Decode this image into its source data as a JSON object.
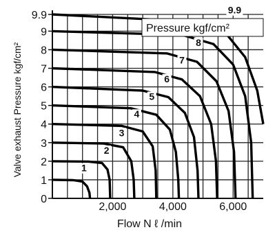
{
  "chart_data": {
    "type": "line",
    "title": "",
    "xlabel": "Flow N ℓ /min",
    "ylabel": "Valve exhaust Pressure kgf/cm²",
    "legend_title": "Pressure kgf/cm²",
    "xlim": [
      0,
      7000
    ],
    "ylim": [
      0,
      9.9
    ],
    "x_ticks": [
      2000,
      4000,
      6000
    ],
    "x_tick_labels": [
      "2,000",
      "4,000",
      "6,000"
    ],
    "y_ticks": [
      0,
      1,
      2,
      3,
      4,
      5,
      6,
      7,
      8,
      9,
      9.9
    ],
    "y_tick_labels": [
      "0",
      "1",
      "2",
      "3",
      "4",
      "5",
      "6",
      "7",
      "8",
      "9",
      "9.9"
    ],
    "grid": true,
    "series": [
      {
        "name": "1",
        "label_at": [
          1050,
          1.45
        ],
        "points": [
          [
            0,
            1.0
          ],
          [
            700,
            0.98
          ],
          [
            1000,
            0.9
          ],
          [
            1150,
            0.65
          ],
          [
            1230,
            0.3
          ],
          [
            1250,
            0
          ]
        ]
      },
      {
        "name": "2",
        "label_at": [
          1800,
          2.4
        ],
        "points": [
          [
            0,
            2.0
          ],
          [
            1200,
            1.98
          ],
          [
            1650,
            1.9
          ],
          [
            1830,
            1.55
          ],
          [
            1900,
            1.0
          ],
          [
            1920,
            0
          ]
        ]
      },
      {
        "name": "3",
        "label_at": [
          2300,
          3.35
        ],
        "points": [
          [
            0,
            3.0
          ],
          [
            1700,
            2.95
          ],
          [
            2350,
            2.75
          ],
          [
            2620,
            2.0
          ],
          [
            2700,
            1.0
          ],
          [
            2720,
            0
          ]
        ]
      },
      {
        "name": "4",
        "label_at": [
          2800,
          4.35
        ],
        "points": [
          [
            0,
            4.0
          ],
          [
            2300,
            3.9
          ],
          [
            3000,
            3.6
          ],
          [
            3330,
            2.8
          ],
          [
            3430,
            1.5
          ],
          [
            3450,
            0
          ]
        ]
      },
      {
        "name": "5",
        "label_at": [
          3300,
          5.3
        ],
        "points": [
          [
            0,
            5.0
          ],
          [
            2600,
            4.85
          ],
          [
            3450,
            4.5
          ],
          [
            3900,
            3.7
          ],
          [
            4100,
            2.5
          ],
          [
            4180,
            1.0
          ],
          [
            4200,
            0
          ]
        ]
      },
      {
        "name": "6",
        "label_at": [
          3800,
          6.25
        ],
        "points": [
          [
            0,
            6.0
          ],
          [
            3000,
            5.8
          ],
          [
            3850,
            5.45
          ],
          [
            4400,
            4.6
          ],
          [
            4700,
            3.3
          ],
          [
            4820,
            1.5
          ],
          [
            4850,
            0
          ]
        ]
      },
      {
        "name": "7",
        "label_at": [
          4300,
          7.25
        ],
        "points": [
          [
            0,
            7.0
          ],
          [
            3400,
            6.8
          ],
          [
            4300,
            6.4
          ],
          [
            4900,
            5.5
          ],
          [
            5270,
            4.0
          ],
          [
            5430,
            2.0
          ],
          [
            5470,
            0
          ]
        ]
      },
      {
        "name": "8",
        "label_at": [
          4850,
          8.2
        ],
        "points": [
          [
            0,
            8.0
          ],
          [
            3800,
            7.8
          ],
          [
            4800,
            7.35
          ],
          [
            5450,
            6.3
          ],
          [
            5850,
            4.7
          ],
          [
            6030,
            2.5
          ],
          [
            6080,
            0
          ]
        ]
      },
      {
        "name": "9",
        "label_at": [
          5400,
          9.15
        ],
        "points": [
          [
            0,
            9.0
          ],
          [
            4300,
            8.8
          ],
          [
            5350,
            8.3
          ],
          [
            6000,
            7.2
          ],
          [
            6400,
            5.5
          ],
          [
            6600,
            3.0
          ],
          [
            6650,
            0
          ]
        ]
      },
      {
        "name": "9.9",
        "label_at": [
          6050,
          9.95
        ],
        "points": [
          [
            0,
            9.9
          ],
          [
            4900,
            9.5
          ],
          [
            5750,
            8.9
          ],
          [
            6400,
            7.6
          ],
          [
            6800,
            5.8
          ],
          [
            7000,
            4.0
          ]
        ]
      }
    ]
  }
}
